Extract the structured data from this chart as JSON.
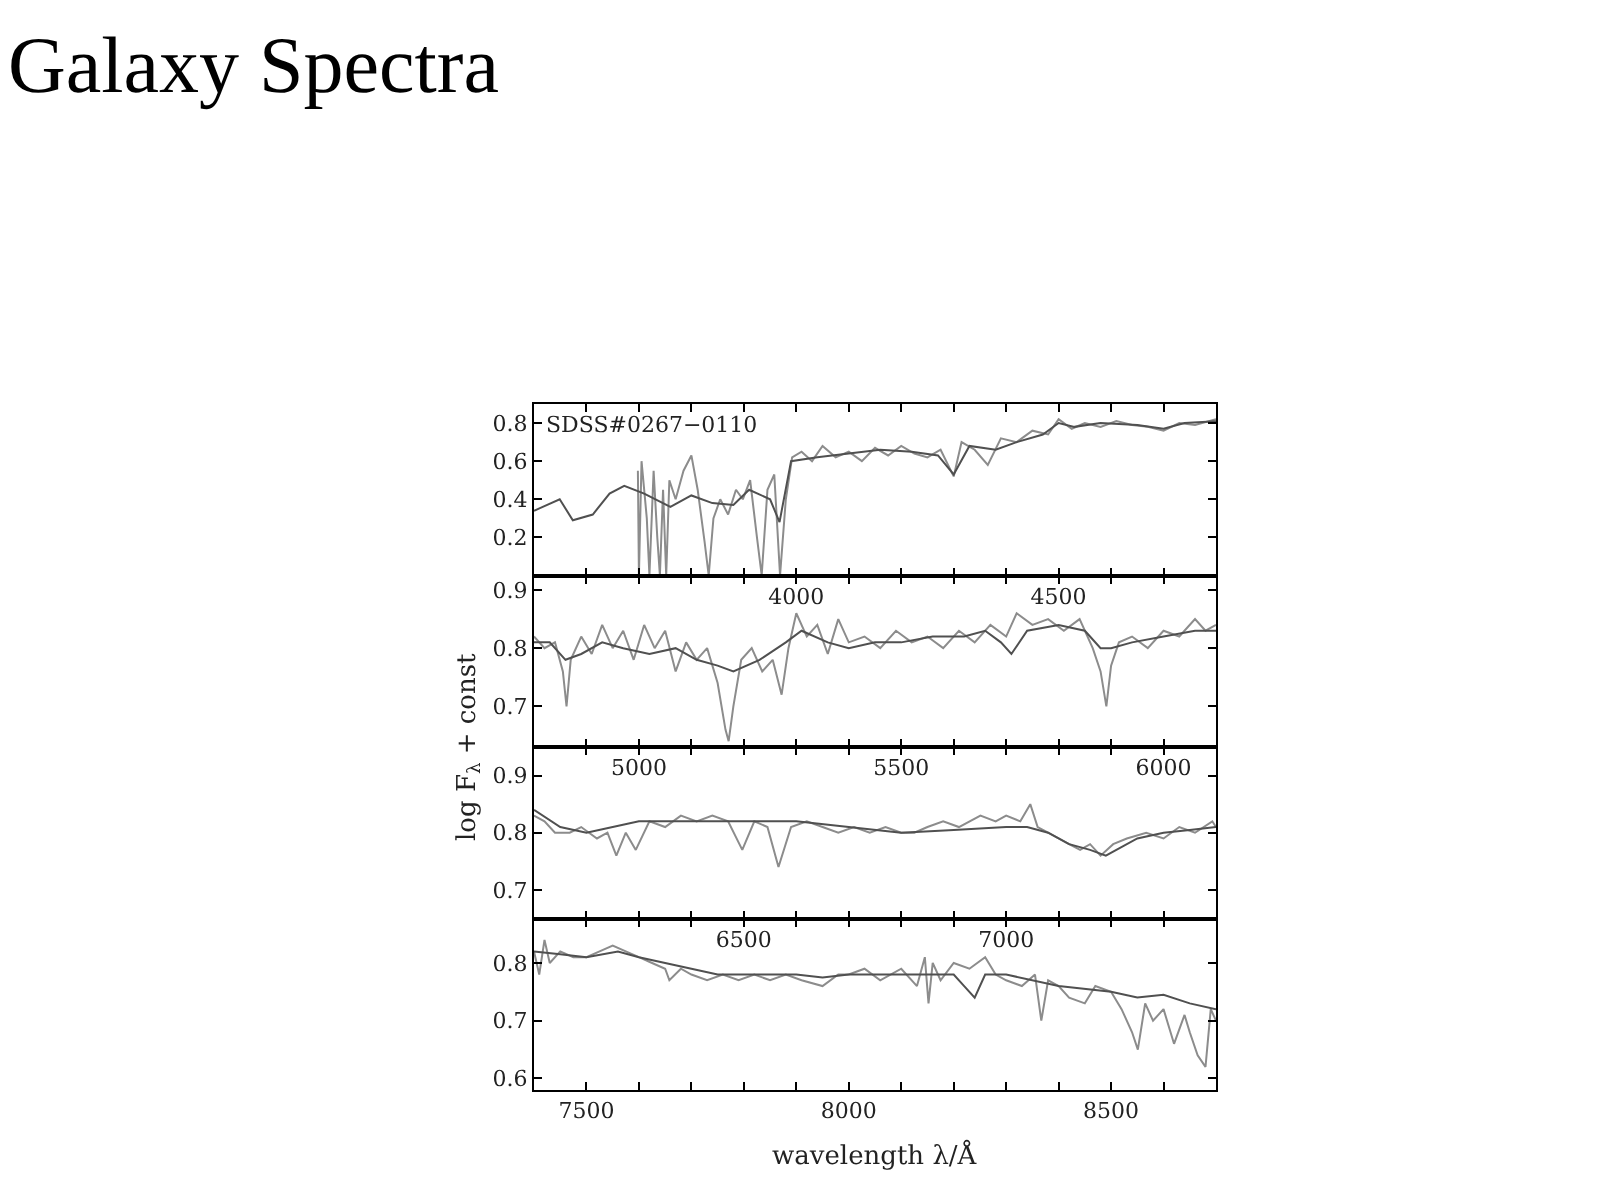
{
  "chart_data": [
    {
      "type": "line",
      "title": "Galaxy Spectra",
      "annotations": [
        "SDSS#0267−0110"
      ],
      "xlim": [
        3500,
        4800
      ],
      "xticks": [
        {
          "value": 3500,
          "label": null
        },
        {
          "value": 3600,
          "label": null
        },
        {
          "value": 3700,
          "label": null
        },
        {
          "value": 3800,
          "label": null
        },
        {
          "value": 3900,
          "label": null
        },
        4000,
        {
          "value": 4100,
          "label": null
        },
        {
          "value": 4200,
          "label": null
        },
        {
          "value": 4300,
          "label": null
        },
        {
          "value": 4400,
          "label": null
        },
        4500,
        {
          "value": 4600,
          "label": null
        },
        {
          "value": 4700,
          "label": null
        }
      ],
      "ylim": [
        0.0,
        0.9
      ],
      "yticks": [
        0.2,
        0.4,
        0.6,
        0.8
      ],
      "grid": false,
      "series": [
        {
          "color": "#8c8c8c",
          "x": [
            3698,
            3700,
            3705,
            3715,
            3720,
            3728,
            3735,
            3740,
            3746,
            3752,
            3758,
            3770,
            3785,
            3800,
            3812,
            3825,
            3833,
            3842,
            3855,
            3870,
            3885,
            3898,
            3912,
            3925,
            3934,
            3945,
            3958,
            3969,
            3980,
            3992,
            4010,
            4030,
            4050,
            4075,
            4100,
            4125,
            4150,
            4175,
            4200,
            4225,
            4250,
            4275,
            4300,
            4315,
            4340,
            4365,
            4390,
            4420,
            4450,
            4480,
            4500,
            4525,
            4550,
            4580,
            4610,
            4640,
            4670,
            4700,
            4730,
            4760,
            4800
          ],
          "values": [
            0.55,
            0.0,
            0.6,
            0.3,
            0.0,
            0.55,
            0.2,
            0.0,
            0.45,
            0.0,
            0.5,
            0.4,
            0.55,
            0.63,
            0.45,
            0.18,
            0.0,
            0.3,
            0.4,
            0.32,
            0.45,
            0.4,
            0.5,
            0.2,
            0.0,
            0.45,
            0.53,
            0.0,
            0.4,
            0.62,
            0.65,
            0.6,
            0.68,
            0.62,
            0.65,
            0.6,
            0.67,
            0.63,
            0.68,
            0.64,
            0.62,
            0.66,
            0.52,
            0.7,
            0.66,
            0.58,
            0.72,
            0.7,
            0.76,
            0.74,
            0.82,
            0.77,
            0.8,
            0.78,
            0.81,
            0.79,
            0.78,
            0.76,
            0.8,
            0.79,
            0.82
          ]
        },
        {
          "color": "#505050",
          "x": [
            3500,
            3549,
            3574,
            3612,
            3644,
            3672,
            3710,
            3760,
            3800,
            3840,
            3880,
            3910,
            3950,
            3968,
            3990,
            4040,
            4100,
            4160,
            4220,
            4270,
            4300,
            4330,
            4380,
            4420,
            4470,
            4500,
            4530,
            4580,
            4650,
            4700,
            4740,
            4800
          ],
          "values": [
            0.34,
            0.4,
            0.29,
            0.32,
            0.43,
            0.47,
            0.43,
            0.36,
            0.42,
            0.38,
            0.37,
            0.45,
            0.4,
            0.28,
            0.6,
            0.62,
            0.64,
            0.66,
            0.65,
            0.63,
            0.53,
            0.68,
            0.66,
            0.7,
            0.74,
            0.8,
            0.78,
            0.8,
            0.79,
            0.77,
            0.8,
            0.81
          ]
        }
      ]
    },
    {
      "type": "line",
      "ylabel": "log F$_{λ}$ + const",
      "xlim": [
        4800,
        6100
      ],
      "xticks": [
        {
          "value": 4800,
          "label": null
        },
        {
          "value": 4900,
          "label": null
        },
        5000,
        {
          "value": 5100,
          "label": null
        },
        {
          "value": 5200,
          "label": null
        },
        {
          "value": 5300,
          "label": null
        },
        {
          "value": 5400,
          "label": null
        },
        5500,
        {
          "value": 5600,
          "label": null
        },
        {
          "value": 5700,
          "label": null
        },
        {
          "value": 5800,
          "label": null
        },
        {
          "value": 5900,
          "label": null
        },
        6000
      ],
      "ylim": [
        0.63,
        0.925
      ],
      "yticks": [
        0.7,
        0.8,
        0.9
      ],
      "grid": false,
      "series": [
        {
          "color": "#8c8c8c",
          "x": [
            4800,
            4820,
            4840,
            4855,
            4862,
            4870,
            4890,
            4910,
            4930,
            4950,
            4970,
            4990,
            5010,
            5030,
            5050,
            5070,
            5090,
            5110,
            5130,
            5150,
            5165,
            5171,
            5180,
            5195,
            5215,
            5235,
            5255,
            5272,
            5285,
            5300,
            5320,
            5340,
            5360,
            5380,
            5400,
            5430,
            5460,
            5490,
            5520,
            5550,
            5580,
            5610,
            5640,
            5670,
            5700,
            5720,
            5750,
            5780,
            5810,
            5840,
            5865,
            5880,
            5891,
            5900,
            5915,
            5940,
            5970,
            6000,
            6030,
            6060,
            6080,
            6100
          ],
          "values": [
            0.82,
            0.8,
            0.81,
            0.76,
            0.7,
            0.78,
            0.82,
            0.79,
            0.84,
            0.8,
            0.83,
            0.78,
            0.84,
            0.8,
            0.83,
            0.76,
            0.81,
            0.78,
            0.8,
            0.74,
            0.66,
            0.64,
            0.7,
            0.78,
            0.8,
            0.76,
            0.78,
            0.72,
            0.8,
            0.86,
            0.82,
            0.84,
            0.79,
            0.85,
            0.81,
            0.82,
            0.8,
            0.83,
            0.81,
            0.82,
            0.8,
            0.83,
            0.81,
            0.84,
            0.82,
            0.86,
            0.84,
            0.85,
            0.83,
            0.85,
            0.8,
            0.76,
            0.7,
            0.77,
            0.81,
            0.82,
            0.8,
            0.83,
            0.82,
            0.85,
            0.83,
            0.84
          ]
        },
        {
          "color": "#505050",
          "x": [
            4800,
            4830,
            4860,
            4890,
            4930,
            4970,
            5020,
            5070,
            5110,
            5150,
            5180,
            5230,
            5280,
            5310,
            5360,
            5400,
            5450,
            5500,
            5560,
            5620,
            5660,
            5690,
            5710,
            5740,
            5800,
            5850,
            5880,
            5900,
            5940,
            6000,
            6060,
            6100
          ],
          "values": [
            0.81,
            0.81,
            0.78,
            0.79,
            0.81,
            0.8,
            0.79,
            0.8,
            0.78,
            0.77,
            0.76,
            0.78,
            0.81,
            0.83,
            0.81,
            0.8,
            0.81,
            0.81,
            0.82,
            0.82,
            0.83,
            0.81,
            0.79,
            0.83,
            0.84,
            0.83,
            0.8,
            0.8,
            0.81,
            0.82,
            0.83,
            0.83
          ]
        }
      ]
    },
    {
      "type": "line",
      "xlim": [
        6100,
        7400
      ],
      "xticks": [
        {
          "value": 6100,
          "label": null
        },
        {
          "value": 6200,
          "label": null
        },
        {
          "value": 6300,
          "label": null
        },
        {
          "value": 6400,
          "label": null
        },
        6500,
        {
          "value": 6600,
          "label": null
        },
        {
          "value": 6700,
          "label": null
        },
        {
          "value": 6800,
          "label": null
        },
        {
          "value": 6900,
          "label": null
        },
        7000,
        {
          "value": 7100,
          "label": null
        },
        {
          "value": 7200,
          "label": null
        },
        {
          "value": 7300,
          "label": null
        }
      ],
      "ylim": [
        0.65,
        0.95
      ],
      "yticks": [
        0.7,
        0.8,
        0.9
      ],
      "grid": false,
      "series": [
        {
          "color": "#8c8c8c",
          "x": [
            6100,
            6120,
            6140,
            6168,
            6190,
            6220,
            6240,
            6257,
            6275,
            6294,
            6320,
            6350,
            6380,
            6410,
            6440,
            6470,
            6497,
            6520,
            6545,
            6566,
            6590,
            6620,
            6650,
            6680,
            6710,
            6740,
            6770,
            6800,
            6825,
            6850,
            6880,
            6910,
            6951,
            6980,
            7000,
            7027,
            7046,
            7060,
            7080,
            7100,
            7120,
            7141,
            7160,
            7180,
            7204,
            7230,
            7267,
            7300,
            7330,
            7360,
            7393,
            7400
          ],
          "values": [
            0.83,
            0.82,
            0.8,
            0.8,
            0.81,
            0.79,
            0.8,
            0.76,
            0.8,
            0.77,
            0.82,
            0.81,
            0.83,
            0.82,
            0.83,
            0.82,
            0.77,
            0.82,
            0.81,
            0.74,
            0.81,
            0.82,
            0.81,
            0.8,
            0.81,
            0.8,
            0.81,
            0.8,
            0.8,
            0.81,
            0.82,
            0.81,
            0.83,
            0.82,
            0.83,
            0.82,
            0.85,
            0.81,
            0.8,
            0.79,
            0.78,
            0.77,
            0.78,
            0.76,
            0.78,
            0.79,
            0.8,
            0.79,
            0.81,
            0.8,
            0.82,
            0.81
          ]
        },
        {
          "color": "#505050",
          "x": [
            6100,
            6150,
            6200,
            6250,
            6300,
            6400,
            6500,
            6600,
            6700,
            6800,
            6900,
            7000,
            7040,
            7080,
            7120,
            7160,
            7190,
            7250,
            7300,
            7350,
            7400
          ],
          "values": [
            0.84,
            0.81,
            0.8,
            0.81,
            0.82,
            0.82,
            0.82,
            0.82,
            0.81,
            0.8,
            0.805,
            0.81,
            0.81,
            0.8,
            0.78,
            0.77,
            0.76,
            0.79,
            0.8,
            0.805,
            0.81
          ]
        }
      ]
    },
    {
      "type": "line",
      "xlabel": "wavelength λ/Å",
      "xlim": [
        7400,
        8700
      ],
      "xticks": [
        {
          "value": 7400,
          "label": null
        },
        7500,
        {
          "value": 7600,
          "label": null
        },
        {
          "value": 7700,
          "label": null
        },
        {
          "value": 7800,
          "label": null
        },
        {
          "value": 7900,
          "label": null
        },
        8000,
        {
          "value": 8100,
          "label": null
        },
        {
          "value": 8200,
          "label": null
        },
        {
          "value": 8300,
          "label": null
        },
        {
          "value": 8400,
          "label": null
        },
        8500,
        {
          "value": 8600,
          "label": null
        }
      ],
      "ylim": [
        0.58,
        0.877
      ],
      "yticks": [
        0.6,
        0.7,
        0.8
      ],
      "grid": false,
      "series": [
        {
          "color": "#8c8c8c",
          "x": [
            7400,
            7410,
            7420,
            7430,
            7450,
            7475,
            7500,
            7525,
            7550,
            7575,
            7600,
            7625,
            7650,
            7658,
            7680,
            7700,
            7730,
            7760,
            7790,
            7820,
            7850,
            7880,
            7910,
            7950,
            7980,
            8000,
            8030,
            8060,
            8100,
            8130,
            8145,
            8152,
            8160,
            8175,
            8200,
            8230,
            8260,
            8280,
            8300,
            8330,
            8355,
            8367,
            8380,
            8400,
            8420,
            8450,
            8470,
            8500,
            8520,
            8540,
            8551,
            8565,
            8580,
            8600,
            8620,
            8640,
            8650,
            8665,
            8680,
            8690,
            8700
          ],
          "values": [
            0.82,
            0.78,
            0.84,
            0.8,
            0.82,
            0.81,
            0.81,
            0.82,
            0.83,
            0.82,
            0.81,
            0.8,
            0.79,
            0.77,
            0.79,
            0.78,
            0.77,
            0.78,
            0.77,
            0.78,
            0.77,
            0.78,
            0.77,
            0.76,
            0.78,
            0.78,
            0.79,
            0.77,
            0.79,
            0.76,
            0.81,
            0.73,
            0.8,
            0.77,
            0.8,
            0.79,
            0.81,
            0.78,
            0.77,
            0.76,
            0.78,
            0.7,
            0.77,
            0.76,
            0.74,
            0.73,
            0.76,
            0.75,
            0.72,
            0.68,
            0.65,
            0.73,
            0.7,
            0.72,
            0.66,
            0.71,
            0.68,
            0.64,
            0.62,
            0.72,
            0.7
          ]
        },
        {
          "color": "#505050",
          "x": [
            7400,
            7450,
            7500,
            7560,
            7600,
            7650,
            7700,
            7750,
            7800,
            7900,
            7950,
            8000,
            8100,
            8200,
            8220,
            8240,
            8260,
            8300,
            8400,
            8500,
            8550,
            8600,
            8650,
            8700
          ],
          "values": [
            0.82,
            0.815,
            0.81,
            0.82,
            0.81,
            0.8,
            0.79,
            0.78,
            0.78,
            0.78,
            0.775,
            0.78,
            0.78,
            0.78,
            0.76,
            0.74,
            0.78,
            0.78,
            0.76,
            0.75,
            0.74,
            0.745,
            0.73,
            0.72
          ]
        }
      ]
    }
  ]
}
